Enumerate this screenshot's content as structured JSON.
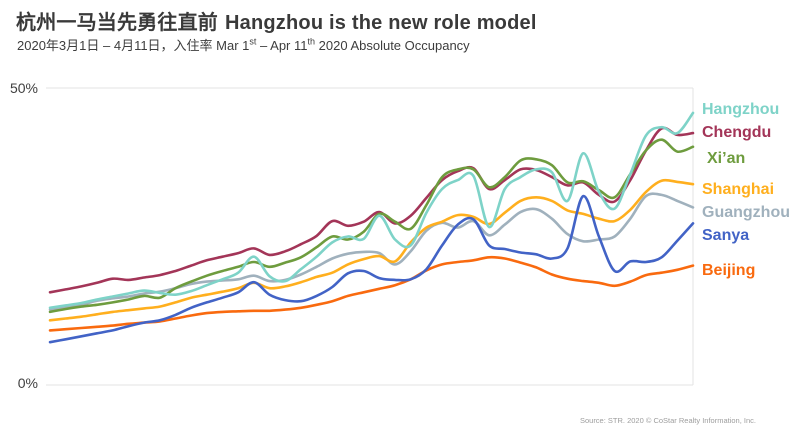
{
  "header": {
    "title_zh": "杭州一马当先勇往直前",
    "title_en": "Hangzhou is the new role model",
    "subtitle": {
      "part1": "2020年3月1日 – 4月11日，入住率 Mar 1",
      "sup1": "st",
      "part2": " – Apr 11",
      "sup2": "th",
      "part3": " 2020 Absolute Occupancy"
    }
  },
  "axis_labels": {
    "y_top": "50%",
    "y_bottom": "0%"
  },
  "source": "Source: STR. 2020 © CoStar Realty Information, Inc.",
  "chart_data": {
    "type": "line",
    "title": "杭州一马当先勇往直前 Hangzhou is the new role model",
    "subtitle": "2020年3月1日 – 4月11日，入住率 Mar 1st – Apr 11th 2020 Absolute Occupancy",
    "x_axis": {
      "start": "Mar 1",
      "end": "Apr 11",
      "points": 42,
      "tick_labels_visible": false
    },
    "y_axis": {
      "min": 0,
      "max": 50,
      "unit": "%",
      "tick_labels": [
        "0%",
        "50%"
      ]
    },
    "grid": "horizontal lines at 0% and 50%, vertical border at right edge",
    "legend_position": "right",
    "ylabel": "Absolute Occupancy (%)",
    "series": [
      {
        "name": "Hangzhou",
        "color": "#7ED3C8",
        "values": [
          13.0,
          13.4,
          13.8,
          14.4,
          14.9,
          15.4,
          15.9,
          15.5,
          15.2,
          15.8,
          16.8,
          17.8,
          18.9,
          21.6,
          18.3,
          17.5,
          19.5,
          21.6,
          24.0,
          25.0,
          24.6,
          28.5,
          24.5,
          23.5,
          29.0,
          33.0,
          34.5,
          35.2,
          26.6,
          33.0,
          35.0,
          36.3,
          35.8,
          31.0,
          39.0,
          32.5,
          29.7,
          35.5,
          42.0,
          43.4,
          42.4,
          45.8
        ]
      },
      {
        "name": "Chengdu",
        "color": "#A33558",
        "values": [
          15.6,
          16.1,
          16.6,
          17.2,
          17.9,
          17.7,
          18.1,
          18.5,
          19.2,
          20.1,
          21.0,
          21.6,
          22.2,
          23.0,
          21.9,
          22.5,
          23.7,
          25.1,
          27.6,
          26.8,
          27.5,
          29.1,
          27.2,
          28.5,
          31.5,
          34.5,
          36.0,
          36.5,
          33.0,
          34.5,
          36.3,
          36.2,
          35.0,
          33.6,
          34.1,
          32.0,
          30.9,
          34.5,
          39.5,
          43.2,
          42.1,
          42.4
        ]
      },
      {
        "name": "Xi’an",
        "color": "#6E9C3E",
        "values": [
          12.3,
          12.8,
          13.2,
          13.5,
          13.9,
          14.4,
          15.0,
          14.7,
          16.3,
          17.4,
          18.4,
          19.2,
          19.9,
          20.7,
          19.9,
          20.6,
          21.5,
          23.2,
          25.0,
          24.5,
          25.8,
          28.8,
          27.5,
          26.3,
          30.3,
          35.0,
          36.3,
          36.3,
          33.3,
          35.0,
          37.8,
          38.0,
          37.0,
          34.1,
          34.3,
          32.8,
          31.6,
          35.5,
          39.5,
          41.3,
          39.3,
          40.1
        ]
      },
      {
        "name": "Shanghai",
        "color": "#FFAF1E",
        "values": [
          10.9,
          11.2,
          11.5,
          11.9,
          12.3,
          12.6,
          12.9,
          13.2,
          13.9,
          14.7,
          15.2,
          15.7,
          16.3,
          17.2,
          16.3,
          16.6,
          17.3,
          18.2,
          18.9,
          20.3,
          21.2,
          21.7,
          20.8,
          24.0,
          26.5,
          27.5,
          28.6,
          28.3,
          27.1,
          29.0,
          31.0,
          31.6,
          31.0,
          29.4,
          28.8,
          28.0,
          27.6,
          29.5,
          32.5,
          34.4,
          34.2,
          33.8
        ]
      },
      {
        "name": "Guangzhou",
        "color": "#A0B1BD",
        "values": [
          12.7,
          13.1,
          13.5,
          14.2,
          14.6,
          14.9,
          15.4,
          15.7,
          16.3,
          17.0,
          17.4,
          17.6,
          17.8,
          18.4,
          17.5,
          17.7,
          18.6,
          19.9,
          21.3,
          22.1,
          22.4,
          22.2,
          20.3,
          22.5,
          26.0,
          27.3,
          26.5,
          27.6,
          25.2,
          27.0,
          29.1,
          29.6,
          28.0,
          25.4,
          24.2,
          24.5,
          25.0,
          28.0,
          31.8,
          32.0,
          31.0,
          29.9
        ]
      },
      {
        "name": "Sanya",
        "color": "#4263C6",
        "values": [
          7.2,
          7.7,
          8.2,
          8.7,
          9.2,
          9.9,
          10.5,
          10.9,
          11.8,
          13.0,
          13.9,
          14.7,
          15.6,
          17.3,
          15.2,
          14.3,
          14.1,
          15.0,
          16.5,
          18.8,
          19.2,
          18.0,
          17.7,
          17.8,
          19.5,
          23.5,
          27.0,
          27.9,
          23.5,
          22.9,
          22.3,
          22.0,
          21.3,
          23.0,
          31.8,
          25.0,
          19.2,
          20.8,
          20.7,
          21.5,
          24.3,
          27.2
        ]
      },
      {
        "name": "Beijing",
        "color": "#F96A0F",
        "values": [
          9.2,
          9.4,
          9.6,
          9.8,
          10.0,
          10.3,
          10.5,
          10.7,
          11.2,
          11.7,
          12.1,
          12.3,
          12.4,
          12.5,
          12.5,
          12.7,
          13.0,
          13.5,
          14.1,
          15.0,
          15.6,
          16.2,
          16.8,
          17.8,
          19.3,
          20.3,
          20.7,
          21.0,
          21.5,
          21.3,
          20.6,
          19.8,
          18.6,
          17.9,
          17.5,
          17.2,
          16.7,
          17.4,
          18.5,
          18.9,
          19.4,
          20.1
        ]
      }
    ]
  }
}
